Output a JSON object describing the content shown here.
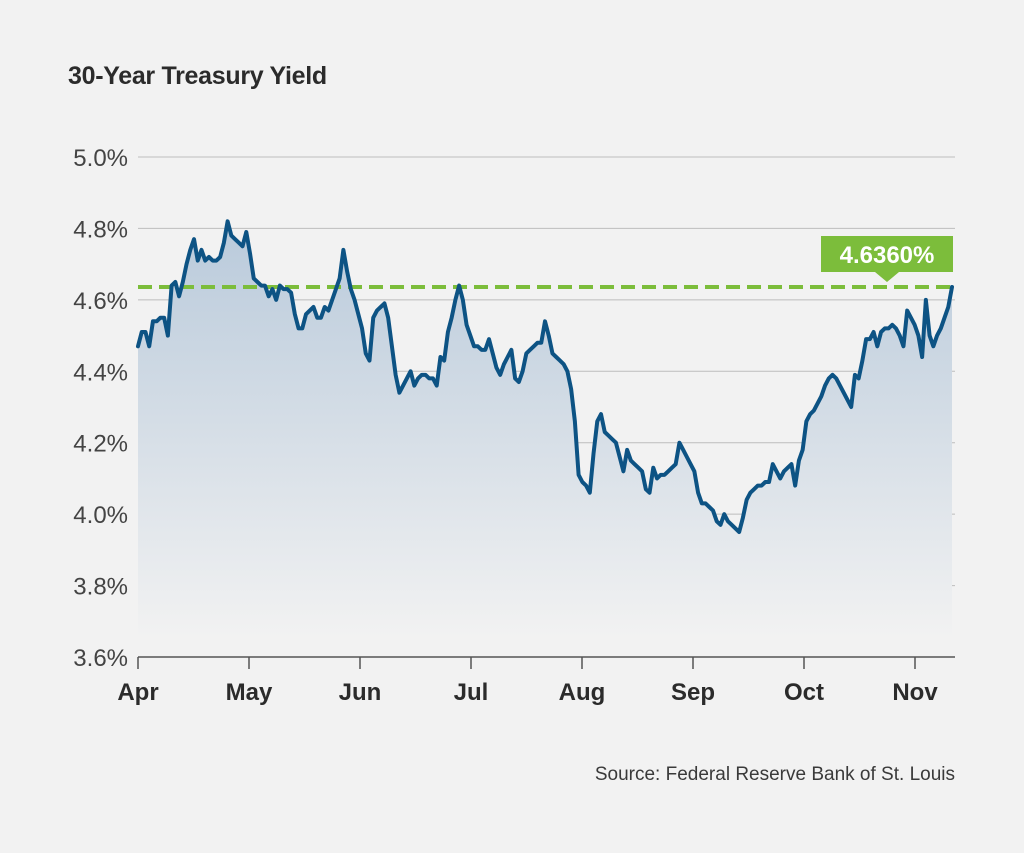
{
  "title": "30-Year Treasury Yield",
  "source": "Source: Federal Reserve Bank of St. Louis",
  "colors": {
    "line": "#0d5384",
    "fill_top": "#b9cadb",
    "fill_bottom": "#f2f2f2",
    "reference": "#7cbd3b",
    "grid": "#bdbdbd",
    "axis": "#555555"
  },
  "chart_data": {
    "type": "area",
    "title": "30-Year Treasury Yield",
    "xlabel": "",
    "ylabel": "",
    "ylim": [
      3.6,
      5.0
    ],
    "y_ticks": [
      3.6,
      3.8,
      4.0,
      4.2,
      4.4,
      4.6,
      4.8,
      5.0
    ],
    "y_tick_labels": [
      "3.6%",
      "3.8%",
      "4.0%",
      "4.2%",
      "4.4%",
      "4.6%",
      "4.8%",
      "5.0%"
    ],
    "x_tick_labels": [
      "Apr",
      "May",
      "Jun",
      "Jul",
      "Aug",
      "Sep",
      "Oct",
      "Nov"
    ],
    "grid": true,
    "series": [
      {
        "values": [
          4.47,
          4.51,
          4.51,
          4.47,
          4.54,
          4.54,
          4.55,
          4.55,
          4.5,
          4.64,
          4.65,
          4.61,
          4.65,
          4.7,
          4.74,
          4.77,
          4.71,
          4.74,
          4.71,
          4.72,
          4.71,
          4.71,
          4.72,
          4.76,
          4.82,
          4.78,
          4.77,
          4.76,
          4.75,
          4.79,
          4.73,
          4.66,
          4.65,
          4.64,
          4.64,
          4.61,
          4.63,
          4.6,
          4.64,
          4.63,
          4.63,
          4.62,
          4.56,
          4.52,
          4.52,
          4.56,
          4.57,
          4.58,
          4.55,
          4.55,
          4.58,
          4.57,
          4.6,
          4.63,
          4.66,
          4.74,
          4.68,
          4.63,
          4.6,
          4.56,
          4.52,
          4.45,
          4.43,
          4.55,
          4.57,
          4.58,
          4.59,
          4.55,
          4.47,
          4.39,
          4.34,
          4.36,
          4.38,
          4.4,
          4.36,
          4.38,
          4.39,
          4.39,
          4.38,
          4.38,
          4.36,
          4.44,
          4.43,
          4.51,
          4.55,
          4.6,
          4.64,
          4.6,
          4.53,
          4.5,
          4.47,
          4.47,
          4.46,
          4.46,
          4.49,
          4.45,
          4.41,
          4.39,
          4.42,
          4.44,
          4.46,
          4.38,
          4.37,
          4.4,
          4.45,
          4.46,
          4.47,
          4.48,
          4.48,
          4.54,
          4.5,
          4.45,
          4.44,
          4.43,
          4.42,
          4.4,
          4.35,
          4.26,
          4.11,
          4.09,
          4.08,
          4.06,
          4.17,
          4.26,
          4.28,
          4.23,
          4.22,
          4.21,
          4.2,
          4.16,
          4.12,
          4.18,
          4.15,
          4.14,
          4.13,
          4.12,
          4.07,
          4.06,
          4.13,
          4.1,
          4.11,
          4.11,
          4.12,
          4.13,
          4.14,
          4.2,
          4.18,
          4.16,
          4.14,
          4.12,
          4.06,
          4.03,
          4.03,
          4.02,
          4.01,
          3.98,
          3.97,
          4.0,
          3.98,
          3.97,
          3.96,
          3.95,
          3.99,
          4.04,
          4.06,
          4.07,
          4.08,
          4.08,
          4.09,
          4.09,
          4.14,
          4.12,
          4.1,
          4.12,
          4.13,
          4.14,
          4.08,
          4.15,
          4.18,
          4.26,
          4.28,
          4.29,
          4.31,
          4.33,
          4.36,
          4.38,
          4.39,
          4.38,
          4.36,
          4.34,
          4.32,
          4.3,
          4.39,
          4.38,
          4.43,
          4.49,
          4.49,
          4.51,
          4.47,
          4.51,
          4.52,
          4.52,
          4.53,
          4.52,
          4.5,
          4.47,
          4.57,
          4.55,
          4.53,
          4.5,
          4.44,
          4.6,
          4.5,
          4.47,
          4.5,
          4.52,
          4.55,
          4.58,
          4.636
        ]
      }
    ],
    "reference_line": {
      "value": 4.636,
      "label": "4.6360%"
    }
  }
}
